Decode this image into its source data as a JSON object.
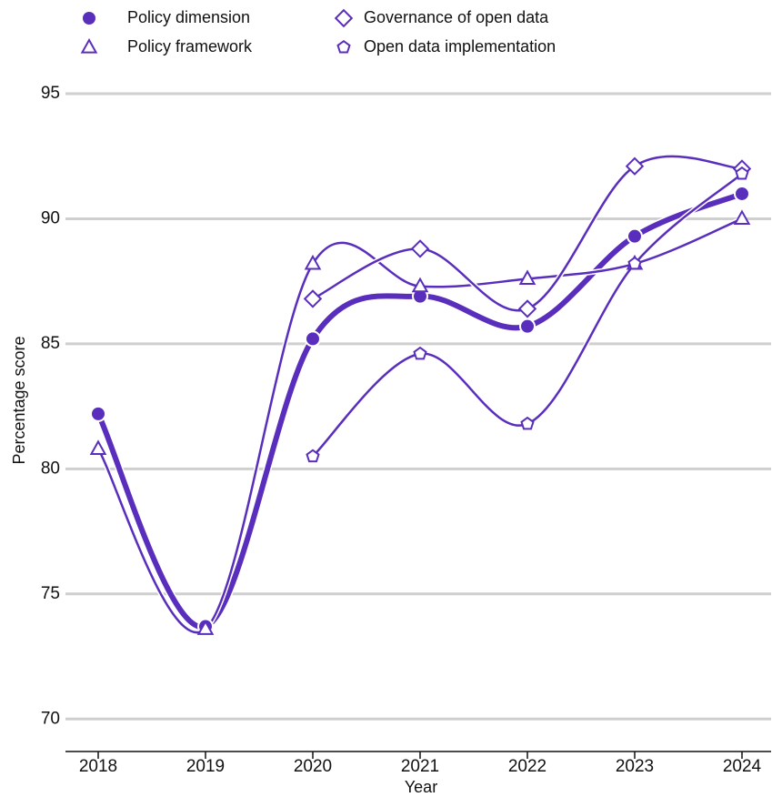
{
  "chart_data": {
    "type": "line",
    "x_label": "Year",
    "y_label": "Percentage score",
    "categories": [
      "2018",
      "2019",
      "2020",
      "2021",
      "2022",
      "2023",
      "2024"
    ],
    "series": [
      {
        "name": "Policy dimension",
        "color": "#5a2ebd",
        "marker": "circle",
        "width": 6,
        "values": [
          82.2,
          73.7,
          85.2,
          86.9,
          85.7,
          89.3,
          91.0
        ]
      },
      {
        "name": "Policy framework",
        "color": "#5a2ebd",
        "marker": "triangle",
        "width": 2.5,
        "values": [
          80.8,
          73.6,
          88.2,
          87.3,
          87.6,
          88.2,
          90.0
        ]
      },
      {
        "name": "Governance of open data",
        "color": "#5a2ebd",
        "marker": "diamond",
        "width": 2.5,
        "values": [
          null,
          null,
          86.8,
          88.8,
          86.4,
          92.1,
          92.0
        ]
      },
      {
        "name": "Open data implementation",
        "color": "#5a2ebd",
        "marker": "pentagon",
        "width": 2.5,
        "values": [
          null,
          null,
          80.5,
          84.6,
          81.8,
          88.2,
          91.8
        ]
      }
    ],
    "ylim": [
      68.7,
      96.2
    ],
    "yticks": [
      70,
      75,
      80,
      85,
      90,
      95
    ],
    "grid": true,
    "smooth": true
  }
}
